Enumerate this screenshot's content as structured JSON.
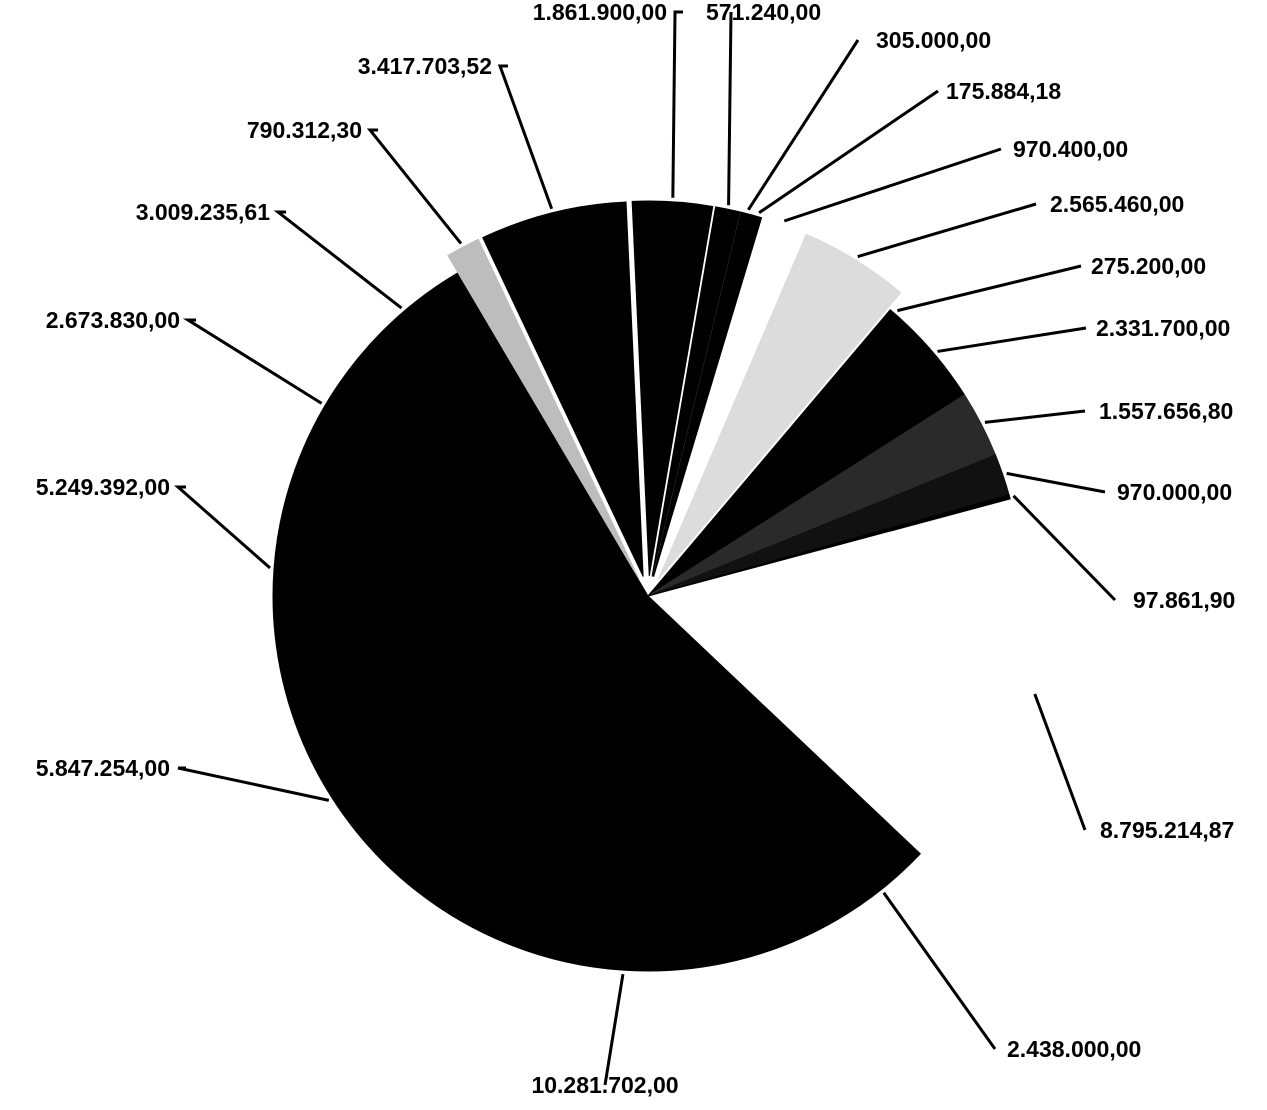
{
  "chart_data": {
    "type": "pie",
    "title": "",
    "label_format": "it-IT",
    "slices": [
      {
        "label": "8.795.214,87",
        "value": 8795214.87,
        "fill": "#ffffff",
        "exploded": true
      },
      {
        "label": "2.438.000,00",
        "value": 2438000.0,
        "fill": "#000000",
        "exploded": false
      },
      {
        "label": "10.281.702,00",
        "value": 10281702.0,
        "fill": "#000000",
        "exploded": false
      },
      {
        "label": "5.847.254,00",
        "value": 5847254.0,
        "fill": "#000000",
        "exploded": false
      },
      {
        "label": "5.249.392,00",
        "value": 5249392.0,
        "fill": "#000000",
        "exploded": false
      },
      {
        "label": "2.673.830,00",
        "value": 2673830.0,
        "fill": "#000000",
        "exploded": false
      },
      {
        "label": "3.009.235,61",
        "value": 3009235.61,
        "fill": "#000000",
        "exploded": false
      },
      {
        "label": "790.312,30",
        "value": 790312.3,
        "fill": "#bdbdbd",
        "exploded": true
      },
      {
        "label": "3.417.703,52",
        "value": 3417703.52,
        "fill": "#000000",
        "exploded": true
      },
      {
        "label": "1.861.900,00",
        "value": 1861900.0,
        "fill": "#000000",
        "exploded": true
      },
      {
        "label": "571.240,00",
        "value": 571240.0,
        "fill": "#000000",
        "exploded": true
      },
      {
        "label": "305.000,00",
        "value": 305000.0,
        "fill": "#000000",
        "exploded": true
      },
      {
        "label": "175.884,18",
        "value": 175884.18,
        "fill": "#000000",
        "exploded": true
      },
      {
        "label": "970.400,00",
        "value": 970400.0,
        "fill": "#ffffff",
        "exploded": true
      },
      {
        "label": "2.565.460,00",
        "value": 2565460.0,
        "fill": "#dcdcdc",
        "exploded": true
      },
      {
        "label": "275.200,00",
        "value": 275200.0,
        "fill": "#000000",
        "exploded": false
      },
      {
        "label": "2.331.700,00",
        "value": 2331700.0,
        "fill": "#000000",
        "exploded": false
      },
      {
        "label": "1.557.656,80",
        "value": 1557656.8,
        "fill": "#2a2a2a",
        "exploded": false
      },
      {
        "label": "970.000,00",
        "value": 970000.0,
        "fill": "#111111",
        "exploded": false
      },
      {
        "label": "97.861,90",
        "value": 97861.9,
        "fill": "#000000",
        "exploded": false
      }
    ],
    "legend": "none"
  }
}
